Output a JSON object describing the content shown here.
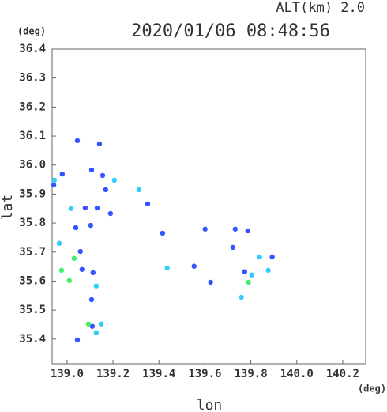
{
  "chart_data": {
    "type": "scatter",
    "title": "2020/01/06 08:48:56",
    "subtitle": "ALT(km) 2.0",
    "x_label": "lon",
    "y_label": "lat",
    "x_unit": "(deg)",
    "y_unit": "(deg)",
    "xlim": [
      138.935,
      140.3
    ],
    "ylim": [
      35.315,
      36.4
    ],
    "xticks": [
      {
        "value": 139,
        "label": "139.0"
      },
      139.2,
      139.4,
      139.6,
      139.8,
      {
        "value": 140,
        "label": "140.0"
      },
      140.2
    ],
    "yticks": [
      {
        "value": 35.4,
        "label": "35.4"
      },
      35.5,
      35.6,
      35.7,
      35.8,
      35.9,
      {
        "value": 36,
        "label": "36.0"
      },
      36.1,
      36.2,
      36.3,
      36.4
    ],
    "series": [
      {
        "color": "#3355ff",
        "x": [
          139.045,
          139.141,
          138.979,
          138.942,
          139.107,
          139.155,
          139.168,
          139.079,
          139.131,
          139.189,
          139.351,
          139.038,
          139.103,
          139.058,
          139.065,
          139.113,
          139.107,
          139.11,
          139.045,
          139.553,
          139.601,
          139.625,
          139.732,
          139.787,
          139.722,
          139.773,
          139.893,
          139.416
        ],
        "y": [
          36.084,
          36.073,
          35.969,
          35.931,
          35.983,
          35.964,
          35.915,
          35.852,
          35.852,
          35.833,
          35.866,
          35.784,
          35.792,
          35.702,
          35.64,
          35.629,
          35.536,
          35.444,
          35.397,
          35.651,
          35.779,
          35.596,
          35.779,
          35.773,
          35.716,
          35.632,
          35.683,
          35.765
        ]
      },
      {
        "color": "#33ccff",
        "x": [
          138.945,
          139.206,
          139.313,
          139.017,
          138.966,
          139.127,
          139.148,
          139.127,
          139.436,
          139.804,
          139.759,
          139.838,
          139.876
        ],
        "y": [
          35.948,
          35.948,
          35.915,
          35.85,
          35.73,
          35.583,
          35.452,
          35.422,
          35.645,
          35.621,
          35.544,
          35.683,
          35.637
        ]
      },
      {
        "color": "#44ee66",
        "x": [
          139.031,
          138.976,
          139.01,
          139.093,
          139.79
        ],
        "y": [
          35.678,
          35.637,
          35.602,
          35.452,
          35.596
        ]
      }
    ]
  }
}
